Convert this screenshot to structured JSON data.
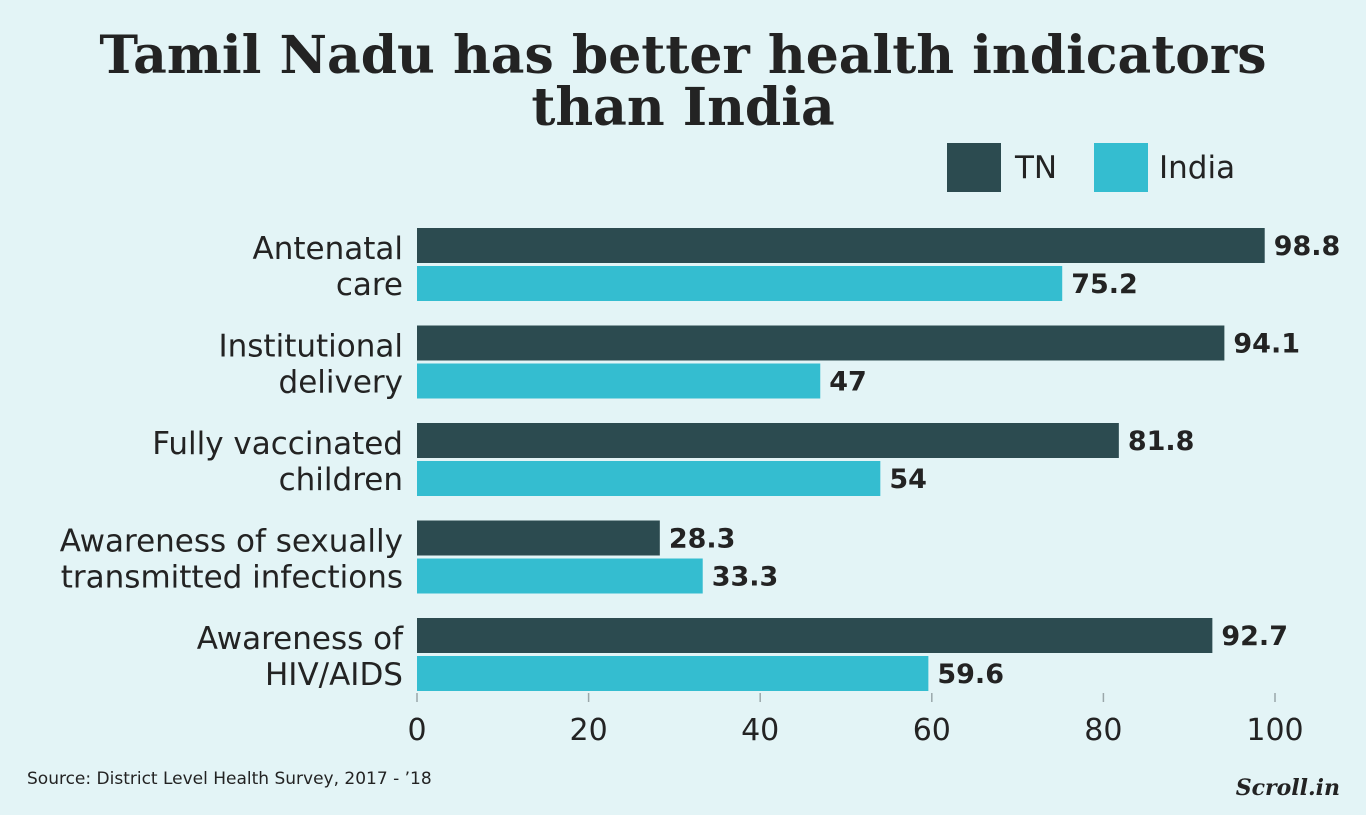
{
  "chart_data": {
    "type": "bar",
    "orientation": "horizontal",
    "title": "Tamil Nadu has better health indicators than India",
    "title_lines": [
      "Tamil Nadu has better health indicators",
      "than India"
    ],
    "categories": [
      [
        "Antenatal",
        "care"
      ],
      [
        "Institutional",
        "delivery"
      ],
      [
        "Fully vaccinated",
        "children"
      ],
      [
        "Awareness of sexually",
        "transmitted infections"
      ],
      [
        "Awareness of",
        "HIV/AIDS"
      ]
    ],
    "series": [
      {
        "name": "TN",
        "color": "#2c4b50",
        "values": [
          98.8,
          94.1,
          81.8,
          28.3,
          92.7
        ],
        "labels": [
          "98.8",
          "94.1",
          "81.8",
          "28.3",
          "92.7"
        ]
      },
      {
        "name": "India",
        "color": "#34bdd0",
        "values": [
          75.2,
          47,
          54,
          33.3,
          59.6
        ],
        "labels": [
          "75.2",
          "47",
          "54",
          "33.3",
          "59.6"
        ]
      }
    ],
    "xlim": [
      0,
      100
    ],
    "xticks": [
      0,
      20,
      40,
      60,
      80,
      100
    ],
    "grid": false,
    "legend_position": "top-right",
    "source": "Source: District Level Health Survey, 2017 - ’18",
    "brand": "Scroll.in"
  }
}
